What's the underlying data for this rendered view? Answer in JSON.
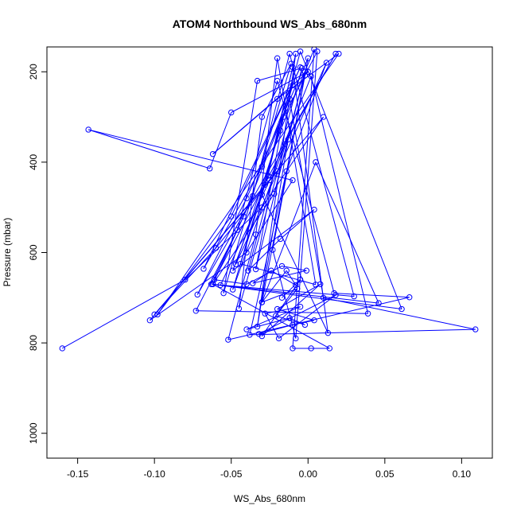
{
  "chart_data": {
    "type": "line",
    "title": "ATOM4 Northbound WS_Abs_680nm",
    "xlabel": "WS_Abs_680nm",
    "ylabel": "Pressure (mbar)",
    "xlim": [
      -0.17,
      0.12
    ],
    "ylim": [
      1055,
      145
    ],
    "y_reversed": true,
    "x_ticks": [
      -0.15,
      -0.1,
      -0.05,
      0.0,
      0.05,
      0.1
    ],
    "x_tick_labels": [
      "-0.15",
      "-0.10",
      "-0.05",
      "0.00",
      "0.05",
      "0.10"
    ],
    "y_ticks": [
      200,
      400,
      600,
      800,
      1000
    ],
    "y_tick_labels": [
      "200",
      "400",
      "600",
      "800",
      "1000"
    ],
    "grid": false,
    "series": [
      {
        "color": "#0000ff",
        "marker": "open-circle",
        "line": true,
        "x": [
          -0.16,
          -0.08,
          -0.03,
          0.01,
          -0.1,
          -0.06,
          -0.02,
          -0.103,
          -0.04,
          -0.01,
          -0.143,
          -0.064,
          -0.05,
          0.0,
          -0.062,
          -0.02,
          0.02,
          -0.098,
          -0.05,
          -0.005,
          -0.068,
          -0.03,
          -0.01,
          -0.049,
          -0.015,
          0.018,
          -0.072,
          -0.04,
          0.0,
          -0.03,
          0.005,
          0.046,
          -0.062,
          -0.036,
          -0.012,
          0.03,
          -0.057,
          -0.025,
          0.002,
          0.039,
          -0.073,
          -0.046,
          -0.02,
          0.017,
          0.066,
          -0.052,
          -0.034,
          -0.02,
          0.005,
          -0.044,
          -0.028,
          -0.01,
          0.013,
          -0.03,
          -0.005,
          0.061,
          -0.063,
          -0.042,
          -0.012,
          0.01,
          0.109,
          -0.038,
          -0.014,
          0.012,
          -0.047,
          -0.018,
          0.004,
          -0.01,
          0.002,
          0.014,
          -0.062,
          -0.022,
          -0.002,
          -0.034,
          -0.016,
          0.006,
          -0.008,
          -0.023,
          -0.002,
          -0.045,
          -0.03,
          -0.011,
          -0.055,
          -0.033,
          -0.004,
          -0.039,
          -0.018,
          0.004,
          -0.049,
          -0.026,
          -0.008,
          -0.033,
          -0.013,
          -0.061,
          -0.04,
          -0.017,
          -0.001,
          -0.036,
          -0.024,
          -0.008,
          -0.014,
          -0.03,
          -0.007,
          -0.021,
          -0.002,
          -0.012,
          -0.04,
          -0.005,
          -0.028,
          -0.019,
          0.018,
          -0.032,
          -0.01,
          0.004,
          -0.02,
          0.008,
          -0.03,
          -0.005,
          -0.017
        ],
        "y": [
          812,
          660,
          500,
          300,
          737,
          590,
          420,
          750,
          600,
          440,
          328,
          414,
          290,
          200,
          382,
          260,
          160,
          737,
          520,
          190,
          636,
          410,
          230,
          682,
          360,
          160,
          693,
          480,
          170,
          710,
          400,
          712,
          670,
          475,
          160,
          697,
          672,
          440,
          210,
          735,
          729,
          550,
          220,
          690,
          699,
          793,
          560,
          170,
          671,
          625,
          450,
          190,
          778,
          472,
          155,
          725,
          670,
          520,
          260,
          700,
          770,
          782,
          420,
          180,
          626,
          330,
          150,
          812,
          812,
          812,
          670,
          470,
          200,
          637,
          300,
          155,
          790,
          594,
          208,
          724,
          300,
          182,
          690,
          220,
          192,
          640,
          570,
          505,
          640,
          430,
          160,
          764,
          350,
          660,
          670,
          630,
          640,
          668,
          640,
          672,
          640,
          710,
          680,
          740,
          760,
          745,
          770,
          720,
          735,
          790,
          694,
          780,
          760,
          750,
          725,
          670,
          785,
          660,
          700
        ]
      }
    ]
  }
}
